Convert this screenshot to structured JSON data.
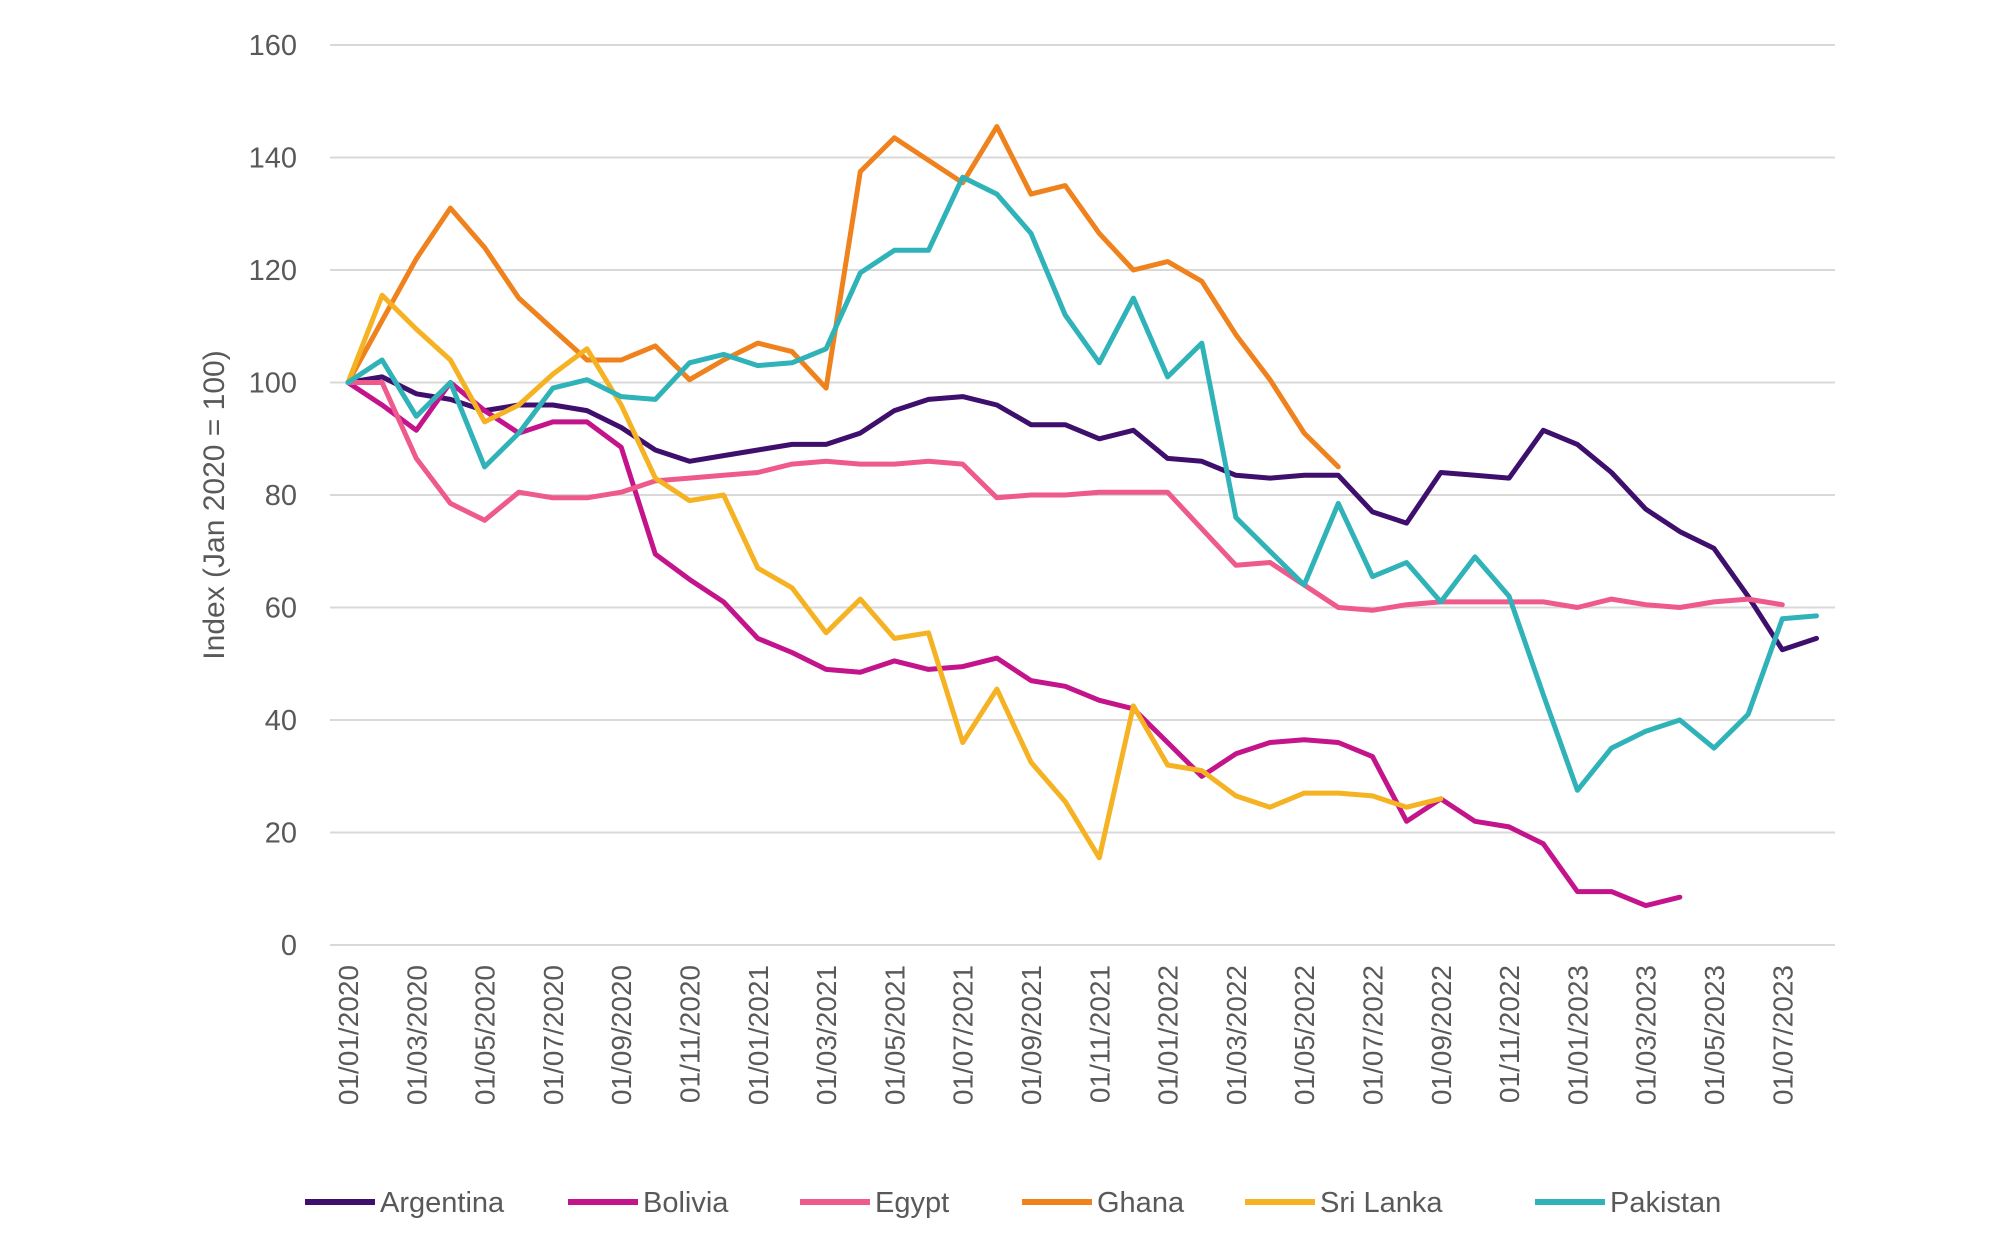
{
  "chart_data": {
    "type": "line",
    "title": "",
    "xlabel": "",
    "ylabel": "Index (Jan 2020 = 100)",
    "ylim": [
      0,
      160
    ],
    "yticks": [
      0,
      20,
      40,
      60,
      80,
      100,
      120,
      140,
      160
    ],
    "grid": true,
    "legend_position": "bottom",
    "x": [
      "01/01/2020",
      "01/02/2020",
      "01/03/2020",
      "01/04/2020",
      "01/05/2020",
      "01/06/2020",
      "01/07/2020",
      "01/08/2020",
      "01/09/2020",
      "01/10/2020",
      "01/11/2020",
      "01/12/2020",
      "01/01/2021",
      "01/02/2021",
      "01/03/2021",
      "01/04/2021",
      "01/05/2021",
      "01/06/2021",
      "01/07/2021",
      "01/08/2021",
      "01/09/2021",
      "01/10/2021",
      "01/11/2021",
      "01/12/2021",
      "01/01/2022",
      "01/02/2022",
      "01/03/2022",
      "01/04/2022",
      "01/05/2022",
      "01/06/2022",
      "01/07/2022",
      "01/08/2022",
      "01/09/2022",
      "01/10/2022",
      "01/11/2022",
      "01/12/2022",
      "01/01/2023",
      "01/02/2023",
      "01/03/2023",
      "01/04/2023",
      "01/05/2023",
      "01/06/2023",
      "01/07/2023",
      "01/08/2023"
    ],
    "xtick_labels": [
      "01/01/2020",
      "01/03/2020",
      "01/05/2020",
      "01/07/2020",
      "01/09/2020",
      "01/11/2020",
      "01/01/2021",
      "01/03/2021",
      "01/05/2021",
      "01/07/2021",
      "01/09/2021",
      "01/11/2021",
      "01/01/2022",
      "01/03/2022",
      "01/05/2022",
      "01/07/2022",
      "01/09/2022",
      "01/11/2022",
      "01/01/2023",
      "01/03/2023",
      "01/05/2023",
      "01/07/2023"
    ],
    "series": [
      {
        "name": "Argentina",
        "color": "#3f0f6e",
        "values": [
          100,
          101,
          98,
          97,
          95,
          96,
          96,
          95,
          92,
          88,
          86,
          87,
          88,
          89,
          89,
          91,
          95,
          97,
          97.5,
          96,
          92.5,
          92.5,
          90,
          91.5,
          86.5,
          86,
          83.5,
          83,
          83.5,
          83.5,
          77,
          75,
          84,
          83.5,
          83,
          91.5,
          89,
          84,
          77.5,
          73.5,
          70.5,
          62,
          52.5,
          54.5
        ]
      },
      {
        "name": "Bolivia",
        "color": "#c4148c",
        "values": [
          100,
          96,
          91.5,
          100,
          95,
          91,
          93,
          93,
          88.5,
          69.5,
          65,
          61,
          54.5,
          52,
          49,
          48.5,
          50.5,
          49,
          49.5,
          51,
          47,
          46,
          43.5,
          42,
          36,
          30,
          34,
          36,
          36.5,
          36,
          33.5,
          22,
          26,
          22,
          21,
          18,
          9.5,
          9.5,
          7,
          8.5,
          null,
          null,
          null,
          null
        ]
      },
      {
        "name": "Egypt",
        "color": "#ee5a8c",
        "values": [
          100,
          100,
          86.5,
          78.5,
          75.5,
          80.5,
          79.5,
          79.5,
          80.5,
          82.5,
          83,
          83.5,
          84,
          85.5,
          86,
          85.5,
          85.5,
          86,
          85.5,
          79.5,
          80,
          80,
          80.5,
          80.5,
          80.5,
          74,
          67.5,
          68,
          64,
          60,
          59.5,
          60.5,
          61,
          61,
          61,
          61,
          60,
          61.5,
          60.5,
          60,
          61,
          61.5,
          60.5,
          null
        ]
      },
      {
        "name": "Ghana",
        "color": "#f0821e",
        "values": [
          100,
          111,
          122,
          131,
          124,
          115,
          109.5,
          104,
          104,
          106.5,
          100.5,
          104,
          107,
          105.5,
          99,
          137.5,
          143.5,
          139.5,
          135.5,
          145.5,
          133.5,
          135,
          126.5,
          120,
          121.5,
          118,
          108.5,
          100.5,
          91,
          85,
          null,
          null,
          null,
          null,
          null,
          null,
          null,
          null,
          null,
          null,
          null,
          null,
          null,
          null
        ]
      },
      {
        "name": "Sri Lanka",
        "color": "#f5b223",
        "values": [
          100,
          115.5,
          109.5,
          104,
          93,
          96,
          101.5,
          106,
          96,
          83,
          79,
          80,
          67,
          63.5,
          55.5,
          61.5,
          54.5,
          55.5,
          36,
          45.5,
          32.5,
          25.5,
          15.5,
          42.5,
          32,
          31,
          26.5,
          24.5,
          27,
          27,
          26.5,
          24.5,
          26,
          null,
          null,
          null,
          null,
          null,
          null,
          null,
          null,
          null,
          null,
          null
        ]
      },
      {
        "name": "Pakistan",
        "color": "#2fb3b8",
        "values": [
          100,
          104,
          94,
          100,
          85,
          91,
          99,
          100.5,
          97.5,
          97,
          103.5,
          105,
          103,
          103.5,
          106,
          119.5,
          123.5,
          123.5,
          136.5,
          133.5,
          126.5,
          112,
          103.5,
          115,
          101,
          107,
          76,
          70,
          64,
          78.5,
          65.5,
          68,
          61,
          69,
          62,
          44.5,
          27.5,
          35,
          38,
          40,
          35,
          41,
          58,
          58.5
        ]
      }
    ]
  }
}
